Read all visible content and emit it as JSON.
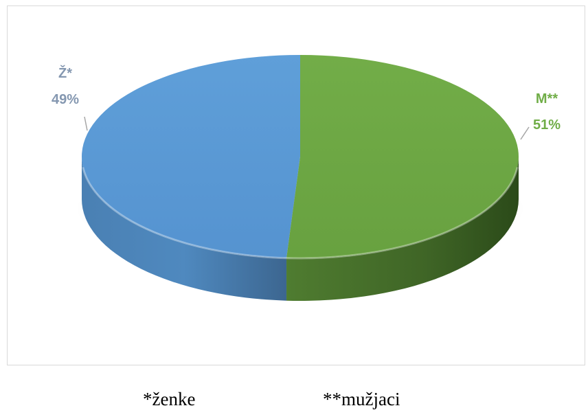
{
  "chart_data": {
    "type": "pie",
    "style": "3d",
    "slices": [
      {
        "label": "Ž*",
        "value": 49,
        "value_label": "49%",
        "color": "#5b9bd5",
        "label_color": "#8497b0"
      },
      {
        "label": "M**",
        "value": 51,
        "value_label": "51%",
        "color": "#70ad47",
        "label_color": "#70ad47"
      }
    ],
    "legend": "none"
  },
  "footnotes": {
    "female": "*ženke",
    "male": "**mužjaci"
  }
}
